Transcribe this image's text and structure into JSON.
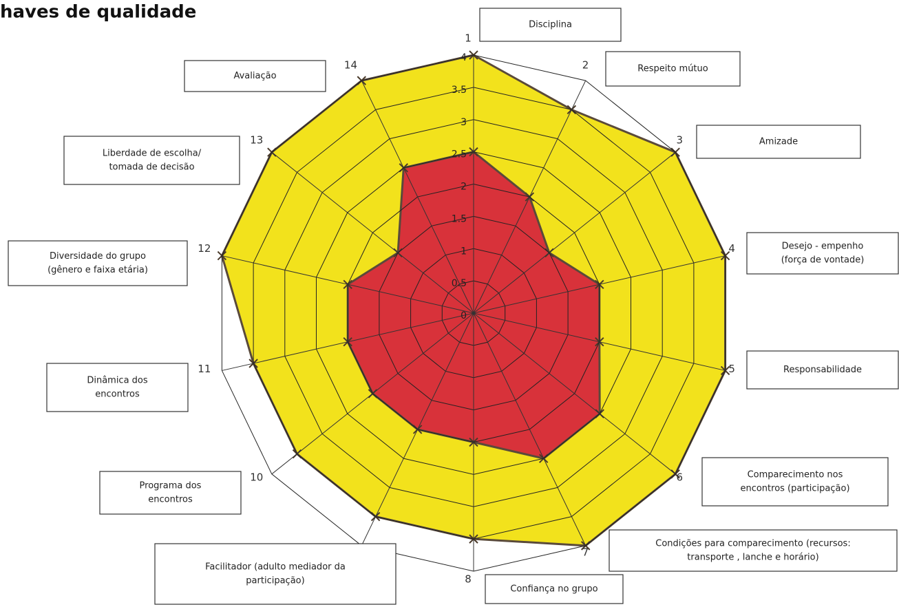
{
  "chart_data": {
    "type": "radar",
    "title": "haves de qualidade",
    "categories": [
      "Disciplina",
      "Respeito mútuo",
      "Amizade",
      [
        "Desejo - empenho",
        "(força de vontade)"
      ],
      "Responsabilidade",
      [
        "Comparecimento nos",
        "encontros (participação)"
      ],
      [
        "Condições para comparecimento (recursos:",
        "transporte , lanche e horário)"
      ],
      "Confiança no grupo",
      [
        "Facilitador (adulto    mediador da",
        "participação)"
      ],
      [
        "Programa dos",
        "encontros"
      ],
      [
        "Dinâmica dos",
        "encontros"
      ],
      [
        "Diversidade do grupo",
        "(gênero e faixa etária)"
      ],
      [
        "Liberdade de escolha/",
        "tomada de decisão"
      ],
      "Avaliação"
    ],
    "axis_numbers": [
      "1",
      "2",
      "3",
      "4",
      "5",
      "6",
      "7",
      "8",
      "9",
      "10",
      "11",
      "12",
      "13",
      "14"
    ],
    "series": [
      {
        "color": "#f2e21c",
        "values": [
          4,
          3.5,
          4,
          4,
          4,
          4,
          4,
          3.5,
          3.5,
          3.5,
          3.5,
          4,
          4,
          4
        ]
      },
      {
        "color": "#d8323a",
        "values": [
          2.5,
          2,
          1.5,
          2,
          2,
          2.5,
          2.5,
          2,
          2,
          2,
          2,
          2,
          1.5,
          2.5
        ]
      }
    ],
    "rlim": [
      0,
      4
    ],
    "rticks": [
      0,
      0.5,
      1,
      1.5,
      2,
      2.5,
      3,
      3.5,
      4
    ],
    "grid": true
  }
}
